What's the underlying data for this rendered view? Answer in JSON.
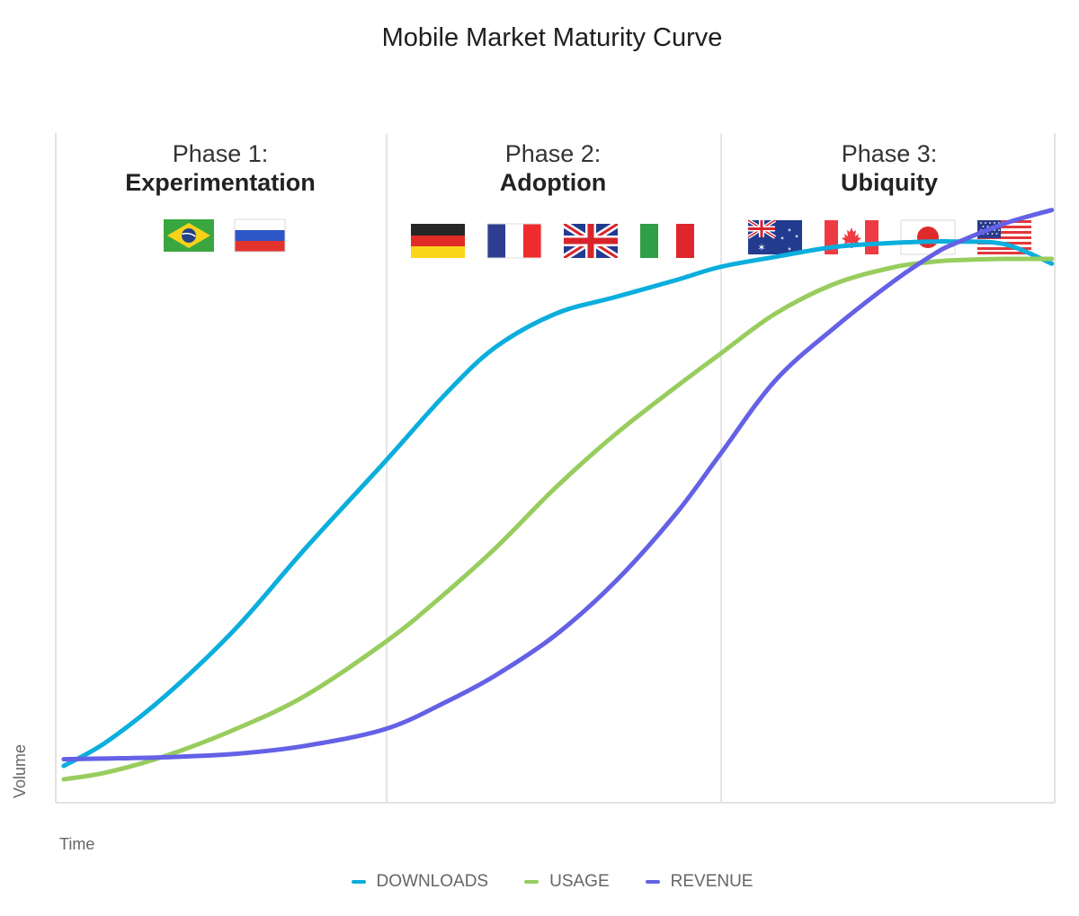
{
  "chart_data": {
    "type": "line",
    "title": "Mobile Market Maturity Curve",
    "xlabel": "Time",
    "ylabel": "Volume",
    "grid": false,
    "legend_position": "bottom",
    "xlim": [
      0,
      100
    ],
    "ylim": [
      0,
      100
    ],
    "phases": [
      {
        "label": "Phase 1:",
        "name": "Experimentation",
        "x_range": [
          0,
          33
        ],
        "flags": [
          "brazil-flag",
          "russia-flag"
        ]
      },
      {
        "label": "Phase 2:",
        "name": "Adoption",
        "x_range": [
          33,
          66.5
        ],
        "flags": [
          "germany-flag",
          "france-flag",
          "uk-flag",
          "italy-flag"
        ]
      },
      {
        "label": "Phase 3:",
        "name": "Ubiquity",
        "x_range": [
          66.5,
          100
        ],
        "flags": [
          "australia-flag",
          "canada-flag",
          "japan-flag",
          "usa-flag"
        ]
      }
    ],
    "series": [
      {
        "name": "DOWNLOADS",
        "color": "#0baedc",
        "x": [
          0.8,
          5,
          11,
          18,
          25,
          33,
          39,
          44,
          50,
          56,
          62,
          66.5,
          72,
          78,
          84,
          88,
          90,
          95,
          99.7
        ],
        "y": [
          5.5,
          9,
          16,
          26,
          38,
          51,
          61,
          68,
          73,
          75.5,
          78,
          80,
          81.5,
          83,
          83.6,
          83.8,
          83.8,
          83.4,
          80.5
        ]
      },
      {
        "name": "USAGE",
        "color": "#98cd5e",
        "x": [
          0.8,
          5,
          11,
          18,
          25,
          33,
          38,
          44,
          50,
          56,
          62,
          66.5,
          72,
          78,
          84,
          88,
          90,
          95,
          99.7
        ],
        "y": [
          3.5,
          4.5,
          7,
          11,
          16,
          24,
          30,
          38,
          47,
          55,
          62,
          67,
          73,
          77.5,
          80,
          80.8,
          81,
          81.2,
          81.2
        ]
      },
      {
        "name": "REVENUE",
        "color": "#6461e6",
        "x": [
          0.8,
          5,
          11,
          18,
          25,
          33,
          39,
          44,
          50,
          56,
          62,
          66.5,
          72,
          78,
          84,
          88,
          90,
          95,
          99.7
        ],
        "y": [
          6.5,
          6.6,
          6.8,
          7.3,
          8.5,
          11,
          15,
          19,
          25,
          33,
          43,
          52,
          63,
          71,
          78,
          82,
          83.5,
          86.5,
          88.5
        ]
      }
    ]
  }
}
